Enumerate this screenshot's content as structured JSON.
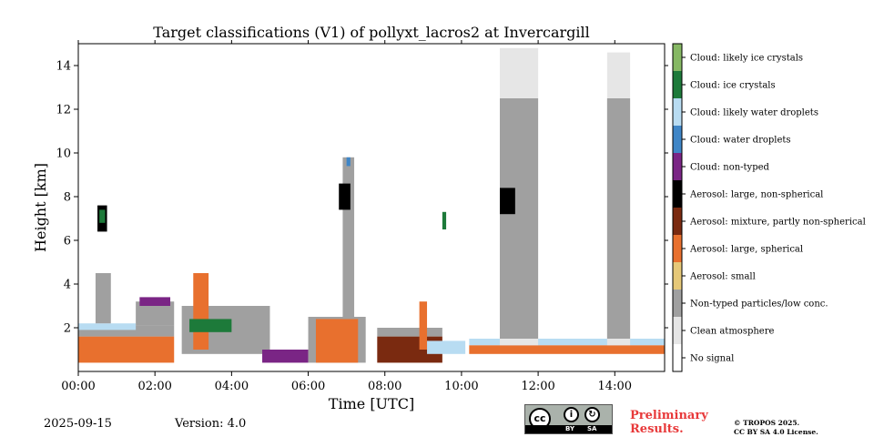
{
  "chart_data": {
    "type": "heatmap",
    "title": "Target classifications (V1) of pollyxt_lacros2 at Invercargill",
    "xlabel": "Time [UTC]",
    "ylabel": "Height [km]",
    "xlim_hours": [
      0,
      15.3
    ],
    "ylim_km": [
      0,
      15
    ],
    "x_ticks": [
      {
        "value": 0,
        "label": "00:00"
      },
      {
        "value": 2,
        "label": "02:00"
      },
      {
        "value": 4,
        "label": "04:00"
      },
      {
        "value": 6,
        "label": "06:00"
      },
      {
        "value": 8,
        "label": "08:00"
      },
      {
        "value": 10,
        "label": "10:00"
      },
      {
        "value": 12,
        "label": "12:00"
      },
      {
        "value": 14,
        "label": "14:00"
      }
    ],
    "y_ticks": [
      {
        "value": 2,
        "label": "2"
      },
      {
        "value": 4,
        "label": "4"
      },
      {
        "value": 6,
        "label": "6"
      },
      {
        "value": 8,
        "label": "8"
      },
      {
        "value": 10,
        "label": "10"
      },
      {
        "value": 12,
        "label": "12"
      },
      {
        "value": 14,
        "label": "14"
      }
    ],
    "classes": [
      {
        "label": "No signal",
        "color": "#ffffff"
      },
      {
        "label": "Clean atmosphere",
        "color": "#e6e6e6"
      },
      {
        "label": "Non-typed particles/low conc.",
        "color": "#a0a0a0"
      },
      {
        "label": "Aerosol: small",
        "color": "#e6c878"
      },
      {
        "label": "Aerosol: large, spherical",
        "color": "#e8702e"
      },
      {
        "label": "Aerosol: mixture, partly non-spherical",
        "color": "#7a2a10"
      },
      {
        "label": "Aerosol: large, non-spherical",
        "color": "#000000"
      },
      {
        "label": "Cloud: non-typed",
        "color": "#7a2585"
      },
      {
        "label": "Cloud: water droplets",
        "color": "#3f86c7"
      },
      {
        "label": "Cloud: likely water droplets",
        "color": "#b8dcf2"
      },
      {
        "label": "Cloud: ice crystals",
        "color": "#1d7a3a"
      },
      {
        "label": "Cloud: likely ice crystals",
        "color": "#86b864"
      }
    ],
    "regions": [
      {
        "cls": 4,
        "t0": 0.0,
        "t1": 2.5,
        "h0": 0.4,
        "h1": 1.6
      },
      {
        "cls": 2,
        "t0": 0.0,
        "t1": 2.5,
        "h0": 1.6,
        "h1": 2.1
      },
      {
        "cls": 9,
        "t0": 0.0,
        "t1": 1.5,
        "h0": 1.9,
        "h1": 2.2
      },
      {
        "cls": 2,
        "t0": 1.5,
        "t1": 2.5,
        "h0": 2.1,
        "h1": 3.2
      },
      {
        "cls": 7,
        "t0": 1.6,
        "t1": 2.4,
        "h0": 3.0,
        "h1": 3.4
      },
      {
        "cls": 2,
        "t0": 0.45,
        "t1": 0.85,
        "h0": 2.2,
        "h1": 4.5
      },
      {
        "cls": 6,
        "t0": 0.5,
        "t1": 0.75,
        "h0": 6.4,
        "h1": 7.6
      },
      {
        "cls": 10,
        "t0": 0.55,
        "t1": 0.7,
        "h0": 6.8,
        "h1": 7.4
      },
      {
        "cls": 2,
        "t0": 2.7,
        "t1": 5.0,
        "h0": 0.8,
        "h1": 3.0
      },
      {
        "cls": 4,
        "t0": 3.0,
        "t1": 3.4,
        "h0": 1.0,
        "h1": 4.5
      },
      {
        "cls": 10,
        "t0": 2.9,
        "t1": 4.0,
        "h0": 1.8,
        "h1": 2.4
      },
      {
        "cls": 7,
        "t0": 4.8,
        "t1": 6.0,
        "h0": 0.4,
        "h1": 1.0
      },
      {
        "cls": 2,
        "t0": 6.0,
        "t1": 7.5,
        "h0": 0.4,
        "h1": 2.5
      },
      {
        "cls": 4,
        "t0": 6.2,
        "t1": 7.3,
        "h0": 0.4,
        "h1": 2.4
      },
      {
        "cls": 2,
        "t0": 6.9,
        "t1": 7.2,
        "h0": 2.4,
        "h1": 9.8
      },
      {
        "cls": 6,
        "t0": 6.8,
        "t1": 7.1,
        "h0": 7.4,
        "h1": 8.6
      },
      {
        "cls": 8,
        "t0": 7.0,
        "t1": 7.1,
        "h0": 9.4,
        "h1": 9.8
      },
      {
        "cls": 5,
        "t0": 7.8,
        "t1": 9.5,
        "h0": 0.4,
        "h1": 1.6
      },
      {
        "cls": 2,
        "t0": 7.8,
        "t1": 9.5,
        "h0": 1.6,
        "h1": 2.0
      },
      {
        "cls": 4,
        "t0": 8.9,
        "t1": 9.1,
        "h0": 1.0,
        "h1": 3.2
      },
      {
        "cls": 9,
        "t0": 9.1,
        "t1": 10.1,
        "h0": 0.8,
        "h1": 1.4
      },
      {
        "cls": 10,
        "t0": 9.5,
        "t1": 9.6,
        "h0": 6.5,
        "h1": 7.3
      },
      {
        "cls": 4,
        "t0": 10.2,
        "t1": 15.3,
        "h0": 0.8,
        "h1": 1.2
      },
      {
        "cls": 9,
        "t0": 10.2,
        "t1": 15.3,
        "h0": 1.2,
        "h1": 1.5
      },
      {
        "cls": 1,
        "t0": 11.0,
        "t1": 12.0,
        "h0": 1.2,
        "h1": 14.8
      },
      {
        "cls": 2,
        "t0": 11.0,
        "t1": 12.0,
        "h0": 1.5,
        "h1": 12.5
      },
      {
        "cls": 6,
        "t0": 11.0,
        "t1": 11.4,
        "h0": 7.2,
        "h1": 8.4
      },
      {
        "cls": 1,
        "t0": 13.8,
        "t1": 14.4,
        "h0": 1.2,
        "h1": 14.6
      },
      {
        "cls": 2,
        "t0": 13.8,
        "t1": 14.4,
        "h0": 1.5,
        "h1": 12.5
      }
    ]
  },
  "footer": {
    "date": "2025-09-15",
    "version": "Version: 4.0",
    "license_badge": {
      "cc": "cc",
      "by": "BY",
      "sa": "SA"
    },
    "preliminary_line1": "Preliminary",
    "preliminary_line2": "Results.",
    "copyright_line1": "© TROPOS 2025.",
    "copyright_line2": "CC BY SA 4.0 License."
  }
}
